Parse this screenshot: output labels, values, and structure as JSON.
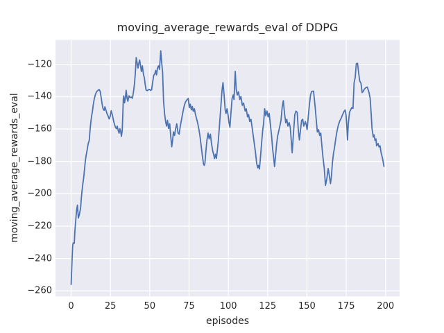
{
  "figure": {
    "title": "moving_average_rewards_eval of DDPG",
    "xlabel": "episodes",
    "ylabel": "moving_average_rewards_eval"
  },
  "colors": {
    "line": "#4C72B0",
    "plot_background": "#EAEAF2",
    "gridline": "#FFFFFF",
    "text": "#262626",
    "figure_background": "#FFFFFF"
  },
  "chart_data": {
    "type": "line",
    "title": "moving_average_rewards_eval of DDPG",
    "xlabel": "episodes",
    "ylabel": "moving_average_rewards_eval",
    "x_tick_values": [
      0,
      25,
      50,
      75,
      100,
      125,
      150,
      175,
      200
    ],
    "x_tick_labels": [
      "0",
      "25",
      "50",
      "75",
      "100",
      "125",
      "150",
      "175",
      "200"
    ],
    "y_tick_values": [
      -120,
      -140,
      -160,
      -180,
      -200,
      -220,
      -240,
      -260
    ],
    "y_tick_labels": [
      "−120",
      "−140",
      "−160",
      "−180",
      "−200",
      "−220",
      "−240",
      "−260"
    ],
    "xlim": [
      -9.95,
      208.95
    ],
    "ylim": [
      -263.4,
      -105.0
    ],
    "grid": true,
    "legend": "none",
    "series": [
      {
        "name": "moving_average_rewards_eval",
        "points": [
          [
            0,
            -256
          ],
          [
            0.7,
            -238
          ],
          [
            1,
            -232
          ],
          [
            1.3,
            -230.4
          ],
          [
            2,
            -230.6
          ],
          [
            2.4,
            -223
          ],
          [
            3,
            -215.5
          ],
          [
            3.5,
            -210
          ],
          [
            4,
            -207
          ],
          [
            4.6,
            -215
          ],
          [
            5.2,
            -213
          ],
          [
            6,
            -209
          ],
          [
            6.5,
            -202.5
          ],
          [
            7,
            -197.5
          ],
          [
            7.5,
            -193.5
          ],
          [
            8,
            -190
          ],
          [
            8.5,
            -185
          ],
          [
            9,
            -180
          ],
          [
            9.5,
            -176.5
          ],
          [
            10,
            -174
          ],
          [
            10.5,
            -171
          ],
          [
            11,
            -168.5
          ],
          [
            11.5,
            -167.2
          ],
          [
            12,
            -161
          ],
          [
            12.5,
            -156
          ],
          [
            13,
            -152
          ],
          [
            13.5,
            -149.5
          ],
          [
            14,
            -145.5
          ],
          [
            14.7,
            -141.5
          ],
          [
            15.5,
            -138.5
          ],
          [
            16.2,
            -137
          ],
          [
            17,
            -136.2
          ],
          [
            17.8,
            -135.6
          ],
          [
            18.5,
            -136.8
          ],
          [
            19,
            -140
          ],
          [
            19.7,
            -144.5
          ],
          [
            20.3,
            -147.5
          ],
          [
            21,
            -148.5
          ],
          [
            21.5,
            -146.3
          ],
          [
            22.1,
            -148.2
          ],
          [
            22.8,
            -150.5
          ],
          [
            23.5,
            -152
          ],
          [
            24.2,
            -153.8
          ],
          [
            24.9,
            -152
          ],
          [
            25.5,
            -148.7
          ],
          [
            26.2,
            -151.2
          ],
          [
            27,
            -155
          ],
          [
            27.6,
            -157.2
          ],
          [
            28.2,
            -159
          ],
          [
            28.8,
            -159.8
          ],
          [
            29.3,
            -158.2
          ],
          [
            30,
            -161.2
          ],
          [
            30.5,
            -162.6
          ],
          [
            31,
            -159.8
          ],
          [
            31.5,
            -161.3
          ],
          [
            32,
            -164.5
          ],
          [
            32.5,
            -161
          ],
          [
            32.8,
            -153
          ],
          [
            33.2,
            -141.5
          ],
          [
            33.5,
            -139.6
          ],
          [
            34,
            -143.8
          ],
          [
            34.5,
            -141
          ],
          [
            35,
            -136.1
          ],
          [
            35.6,
            -141
          ],
          [
            36.1,
            -142.9
          ],
          [
            36.8,
            -139.5
          ],
          [
            37.5,
            -140.6
          ],
          [
            38.3,
            -140.3
          ],
          [
            39,
            -141
          ],
          [
            39.8,
            -136.1
          ],
          [
            40.3,
            -132
          ],
          [
            40.8,
            -126
          ],
          [
            41.4,
            -115.9
          ],
          [
            42,
            -119.2
          ],
          [
            42.5,
            -122.4
          ],
          [
            43,
            -119.6
          ],
          [
            43.6,
            -117.4
          ],
          [
            44.2,
            -121.3
          ],
          [
            44.7,
            -124.5
          ],
          [
            45.3,
            -121
          ],
          [
            46,
            -126.2
          ],
          [
            46.6,
            -128.5
          ],
          [
            47.1,
            -132.5
          ],
          [
            47.7,
            -136
          ],
          [
            48.4,
            -136.3
          ],
          [
            49.1,
            -135.8
          ],
          [
            49.8,
            -135.5
          ],
          [
            50.5,
            -136.2
          ],
          [
            51.2,
            -135.8
          ],
          [
            51.9,
            -130.8
          ],
          [
            52.6,
            -126.7
          ],
          [
            53.2,
            -125.9
          ],
          [
            53.8,
            -123.8
          ],
          [
            54.3,
            -126.6
          ],
          [
            55,
            -122.1
          ],
          [
            55.6,
            -121
          ],
          [
            56.2,
            -123.2
          ],
          [
            57,
            -111.7
          ],
          [
            57.6,
            -119
          ],
          [
            58.2,
            -125.2
          ],
          [
            58.8,
            -143
          ],
          [
            59.5,
            -151
          ],
          [
            60.2,
            -156
          ],
          [
            60.7,
            -158.2
          ],
          [
            61.3,
            -154.7
          ],
          [
            62,
            -159.7
          ],
          [
            62.7,
            -156.8
          ],
          [
            63.4,
            -165
          ],
          [
            64,
            -171
          ],
          [
            64.6,
            -166.5
          ],
          [
            65.1,
            -161.8
          ],
          [
            65.8,
            -164
          ],
          [
            66.5,
            -159.7
          ],
          [
            67.2,
            -156.8
          ],
          [
            68,
            -162.5
          ],
          [
            68.7,
            -163.2
          ],
          [
            69.5,
            -157.9
          ],
          [
            70.3,
            -153.8
          ],
          [
            71.1,
            -149.5
          ],
          [
            71.9,
            -145.8
          ],
          [
            72.7,
            -143.4
          ],
          [
            73.5,
            -142.2
          ],
          [
            74.5,
            -141.1
          ],
          [
            75.2,
            -146.8
          ],
          [
            75.8,
            -144.7
          ],
          [
            76.5,
            -148.2
          ],
          [
            77.1,
            -146.1
          ],
          [
            77.7,
            -149
          ],
          [
            78.4,
            -147.5
          ],
          [
            79.1,
            -151.1
          ],
          [
            79.9,
            -154
          ],
          [
            80.6,
            -156.8
          ],
          [
            81.3,
            -160.4
          ],
          [
            82,
            -164.7
          ],
          [
            82.8,
            -171.1
          ],
          [
            83.5,
            -176.8
          ],
          [
            84.2,
            -181.6
          ],
          [
            84.7,
            -182.5
          ],
          [
            85.1,
            -181.1
          ],
          [
            85.7,
            -173.9
          ],
          [
            86.4,
            -166.8
          ],
          [
            87.1,
            -162.5
          ],
          [
            87.8,
            -166.1
          ],
          [
            88.6,
            -163.2
          ],
          [
            89.3,
            -169
          ],
          [
            90,
            -173.2
          ],
          [
            90.6,
            -175.6
          ],
          [
            91.2,
            -178.2
          ],
          [
            91.8,
            -175.6
          ],
          [
            92.4,
            -178.2
          ],
          [
            93,
            -173.2
          ],
          [
            93.6,
            -167.5
          ],
          [
            94.2,
            -160
          ],
          [
            94.8,
            -152
          ],
          [
            95.4,
            -144
          ],
          [
            96,
            -136
          ],
          [
            96.6,
            -131.3
          ],
          [
            97.3,
            -139
          ],
          [
            98,
            -148.2
          ],
          [
            98.5,
            -150.4
          ],
          [
            99.2,
            -147.5
          ],
          [
            99.8,
            -151.1
          ],
          [
            100.4,
            -156
          ],
          [
            101,
            -158.9
          ],
          [
            101.7,
            -149.7
          ],
          [
            102.4,
            -141.1
          ],
          [
            103.1,
            -139
          ],
          [
            103.6,
            -141.8
          ],
          [
            104,
            -133
          ],
          [
            104.4,
            -124.4
          ],
          [
            105,
            -135.4
          ],
          [
            105.7,
            -139
          ],
          [
            106.4,
            -137
          ],
          [
            107.3,
            -141.8
          ],
          [
            108,
            -139.9
          ],
          [
            108.9,
            -145.4
          ],
          [
            109.7,
            -144
          ],
          [
            110.7,
            -148.9
          ],
          [
            111.4,
            -147.5
          ],
          [
            112.2,
            -152.5
          ],
          [
            112.9,
            -151.1
          ],
          [
            113.6,
            -155.4
          ],
          [
            114.4,
            -154
          ],
          [
            115.1,
            -158.9
          ],
          [
            115.8,
            -163.9
          ],
          [
            116.6,
            -169.6
          ],
          [
            117.3,
            -174.7
          ],
          [
            118,
            -181.1
          ],
          [
            118.7,
            -184
          ],
          [
            119.2,
            -182.5
          ],
          [
            119.8,
            -184.7
          ],
          [
            120.5,
            -176.8
          ],
          [
            121.2,
            -168.2
          ],
          [
            121.9,
            -160.4
          ],
          [
            122.4,
            -156.8
          ],
          [
            123.1,
            -147.5
          ],
          [
            123.8,
            -151.8
          ],
          [
            124.6,
            -148.9
          ],
          [
            125.3,
            -152.5
          ],
          [
            126,
            -150.4
          ],
          [
            126.7,
            -156.8
          ],
          [
            127.5,
            -163.9
          ],
          [
            128.2,
            -172.5
          ],
          [
            128.9,
            -178.2
          ],
          [
            129.4,
            -183.2
          ],
          [
            130,
            -177
          ],
          [
            130.6,
            -170.4
          ],
          [
            131.3,
            -164.7
          ],
          [
            132.1,
            -161.1
          ],
          [
            132.8,
            -158
          ],
          [
            133.5,
            -154.7
          ],
          [
            134.3,
            -146.1
          ],
          [
            135,
            -142.5
          ],
          [
            135.7,
            -150
          ],
          [
            136.5,
            -156.1
          ],
          [
            137.2,
            -154
          ],
          [
            137.9,
            -158.2
          ],
          [
            138.7,
            -156.1
          ],
          [
            139.4,
            -159
          ],
          [
            140.1,
            -168
          ],
          [
            140.6,
            -174.7
          ],
          [
            141.6,
            -160.4
          ],
          [
            142.3,
            -151.1
          ],
          [
            143,
            -149
          ],
          [
            143.8,
            -149.7
          ],
          [
            144.5,
            -160.4
          ],
          [
            145.2,
            -166.8
          ],
          [
            146,
            -160
          ],
          [
            146.6,
            -154.7
          ],
          [
            147.3,
            -154
          ],
          [
            148,
            -158.2
          ],
          [
            149,
            -155.4
          ],
          [
            149.6,
            -157.5
          ],
          [
            150.1,
            -160.4
          ],
          [
            150.8,
            -153
          ],
          [
            151.6,
            -144.7
          ],
          [
            152.3,
            -139
          ],
          [
            153,
            -136.8
          ],
          [
            154.2,
            -136.6
          ],
          [
            155.2,
            -146.1
          ],
          [
            155.9,
            -154
          ],
          [
            156.6,
            -161.8
          ],
          [
            157.4,
            -160.4
          ],
          [
            158.1,
            -164
          ],
          [
            158.8,
            -162.5
          ],
          [
            159.5,
            -170.4
          ],
          [
            160.2,
            -177.5
          ],
          [
            161,
            -184
          ],
          [
            161.8,
            -194.9
          ],
          [
            162.7,
            -190.5
          ],
          [
            163.5,
            -184.4
          ],
          [
            164.2,
            -188.5
          ],
          [
            165,
            -193.7
          ],
          [
            165.6,
            -189
          ],
          [
            166.2,
            -181
          ],
          [
            166.9,
            -175
          ],
          [
            167.5,
            -171.8
          ],
          [
            168.4,
            -165.5
          ],
          [
            169.2,
            -161
          ],
          [
            170,
            -157.5
          ],
          [
            170.9,
            -155
          ],
          [
            171.8,
            -153.3
          ],
          [
            172.7,
            -151.1
          ],
          [
            173.7,
            -149
          ],
          [
            174.3,
            -148.2
          ],
          [
            174.9,
            -151.5
          ],
          [
            175.4,
            -158.5
          ],
          [
            175.8,
            -166.8
          ],
          [
            176.3,
            -157
          ],
          [
            177.1,
            -149.7
          ],
          [
            177.8,
            -148.2
          ],
          [
            178.5,
            -146.8
          ],
          [
            179.3,
            -147.3
          ],
          [
            180,
            -131.5
          ],
          [
            180.7,
            -128.2
          ],
          [
            181.4,
            -119.7
          ],
          [
            182.2,
            -119.4
          ],
          [
            182.9,
            -125.4
          ],
          [
            183.6,
            -130.4
          ],
          [
            184.4,
            -131.8
          ],
          [
            185.1,
            -137.5
          ],
          [
            185.8,
            -136.8
          ],
          [
            186.5,
            -135.4
          ],
          [
            187.6,
            -134.4
          ],
          [
            188.4,
            -134.1
          ],
          [
            189.5,
            -137.5
          ],
          [
            190.2,
            -141
          ],
          [
            190.8,
            -149.5
          ],
          [
            191.4,
            -159.7
          ],
          [
            192.2,
            -165
          ],
          [
            192.7,
            -163.6
          ],
          [
            193.3,
            -167.1
          ],
          [
            193.9,
            -166.1
          ],
          [
            194.3,
            -170.4
          ],
          [
            195.2,
            -169
          ],
          [
            195.9,
            -171.1
          ],
          [
            196.5,
            -170.4
          ],
          [
            197.2,
            -174.7
          ],
          [
            198.1,
            -178.2
          ],
          [
            199,
            -183.1
          ]
        ]
      }
    ]
  }
}
